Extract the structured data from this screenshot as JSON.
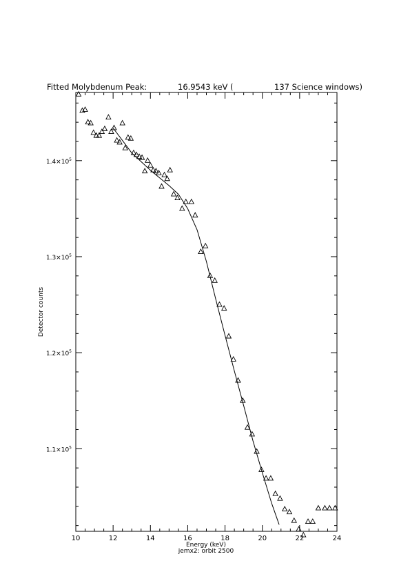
{
  "chart_data": {
    "type": "scatter",
    "title_left": "Fitted Molybdenum Peak:",
    "title_value": "16.9543 keV (",
    "title_right": "137 Science windows)",
    "xlabel": "Energy (keV)",
    "ylabel": "Detector counts",
    "subtitle": "jemx2: orbit 2500",
    "xlim": [
      10,
      24
    ],
    "ylim": [
      101400,
      147100
    ],
    "x_ticks": [
      10,
      12,
      14,
      16,
      18,
      20,
      22,
      24
    ],
    "x_tick_labels": [
      "10",
      "12",
      "14",
      "16",
      "18",
      "20",
      "22",
      "24"
    ],
    "y_ticks": [
      110000,
      120000,
      130000,
      140000
    ],
    "y_tick_labels": [
      {
        "mant": "1.1×10",
        "exp": "5"
      },
      {
        "mant": "1.2×10",
        "exp": "5"
      },
      {
        "mant": "1.3×10",
        "exp": "5"
      },
      {
        "mant": "1.4×10",
        "exp": "5"
      }
    ],
    "marker": "triangle",
    "series": [
      {
        "type": "scatter",
        "x": [
          10.15,
          10.35,
          10.5,
          10.65,
          10.8,
          10.95,
          11.1,
          11.25,
          11.4,
          11.55,
          11.75,
          11.9,
          12.05,
          12.2,
          12.35,
          12.5,
          12.65,
          12.8,
          12.95,
          13.1,
          13.25,
          13.4,
          13.55,
          13.7,
          13.85,
          14.0,
          14.15,
          14.3,
          14.45,
          14.6,
          14.75,
          14.9,
          15.05,
          15.25,
          15.45,
          15.7,
          15.9,
          16.2,
          16.4,
          16.7,
          16.95,
          17.2,
          17.45,
          17.7,
          17.95,
          18.2,
          18.45,
          18.7,
          18.95,
          19.2,
          19.45,
          19.7,
          19.95,
          20.2,
          20.45,
          20.7,
          20.95,
          21.2,
          21.45,
          21.7,
          21.95,
          22.2,
          22.45,
          22.7,
          23.0,
          23.35,
          23.6,
          23.9
        ],
        "y": [
          146900,
          145200,
          145300,
          144000,
          143900,
          142900,
          142600,
          142600,
          143000,
          143300,
          144500,
          143000,
          143400,
          142100,
          141900,
          143900,
          141300,
          142400,
          142300,
          140800,
          140600,
          140400,
          140300,
          138900,
          140000,
          139500,
          139000,
          138900,
          138700,
          137300,
          138500,
          138100,
          139000,
          136500,
          136100,
          135000,
          135700,
          135700,
          134300,
          130500,
          131100,
          128000,
          127500,
          125000,
          124600,
          121700,
          119300,
          117100,
          115000,
          112200,
          111500,
          109700,
          107800,
          106900,
          106900,
          105300,
          104800,
          103700,
          103400,
          102500,
          101600,
          101000,
          102400,
          102400,
          103800,
          103800,
          103800,
          103800
        ]
      },
      {
        "type": "line",
        "name": "fit",
        "x": [
          12.0,
          12.5,
          13.0,
          13.5,
          14.0,
          14.5,
          15.0,
          15.5,
          16.0,
          16.5,
          17.0,
          17.5,
          18.0,
          18.5,
          19.0,
          19.5,
          20.0,
          20.5,
          20.9
        ],
        "y": [
          143400,
          142100,
          140800,
          139900,
          139000,
          138200,
          137400,
          136500,
          135000,
          132800,
          129500,
          125600,
          121800,
          118100,
          114500,
          110800,
          107500,
          104300,
          102100
        ]
      }
    ],
    "grid": false,
    "legend": "none"
  }
}
